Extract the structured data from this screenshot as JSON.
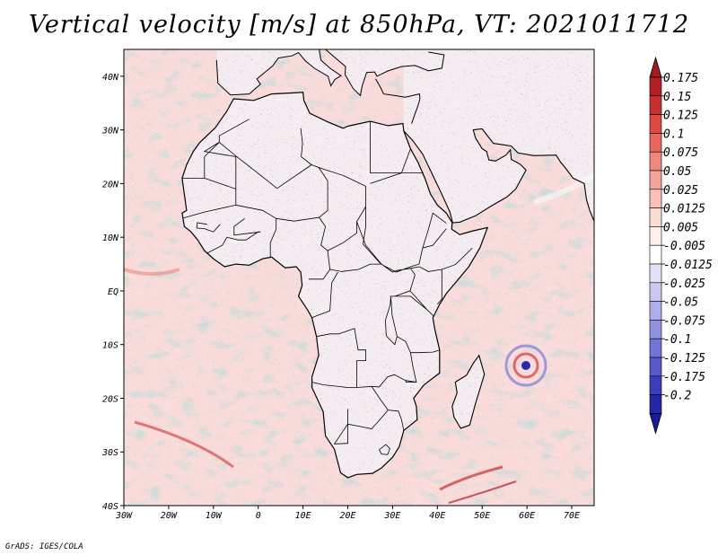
{
  "title": "Vertical velocity [m/s] at 850hPa, VT: 2021011712",
  "credit": "GrADS: IGES/COLA",
  "map": {
    "region": "Africa",
    "lon_range": [
      -30,
      75
    ],
    "lat_range": [
      -40,
      45
    ],
    "x_ticks": [
      {
        "lon": -30,
        "label": "30W"
      },
      {
        "lon": -20,
        "label": "20W"
      },
      {
        "lon": -10,
        "label": "10W"
      },
      {
        "lon": 0,
        "label": "0"
      },
      {
        "lon": 10,
        "label": "10E"
      },
      {
        "lon": 20,
        "label": "20E"
      },
      {
        "lon": 30,
        "label": "30E"
      },
      {
        "lon": 40,
        "label": "40E"
      },
      {
        "lon": 50,
        "label": "50E"
      },
      {
        "lon": 60,
        "label": "60E"
      },
      {
        "lon": 70,
        "label": "70E"
      }
    ],
    "y_ticks": [
      {
        "lat": 40,
        "label": "40N"
      },
      {
        "lat": 30,
        "label": "30N"
      },
      {
        "lat": 20,
        "label": "20N"
      },
      {
        "lat": 10,
        "label": "10N"
      },
      {
        "lat": 0,
        "label": "EQ"
      },
      {
        "lat": -10,
        "label": "10S"
      },
      {
        "lat": -20,
        "label": "20S"
      },
      {
        "lat": -30,
        "label": "30S"
      },
      {
        "lat": -40,
        "label": "40S"
      }
    ]
  },
  "colorbar": {
    "levels": [
      {
        "label": "0.175",
        "color": "#b02026"
      },
      {
        "label": "0.15",
        "color": "#c8302f"
      },
      {
        "label": "0.125",
        "color": "#dc4a45"
      },
      {
        "label": "0.1",
        "color": "#e8675f"
      },
      {
        "label": "0.075",
        "color": "#f0867d"
      },
      {
        "label": "0.05",
        "color": "#f5a49b"
      },
      {
        "label": "0.025",
        "color": "#f9c1ba"
      },
      {
        "label": "0.0125",
        "color": "#fcdcd7"
      },
      {
        "label": "0.005",
        "color": "#fff0ee"
      },
      {
        "label": "-0.005",
        "color": "#ffffff"
      },
      {
        "label": "-0.0125",
        "color": "#e2e2f8"
      },
      {
        "label": "-0.025",
        "color": "#c8c8f2"
      },
      {
        "label": "-0.05",
        "color": "#adadeb"
      },
      {
        "label": "-0.075",
        "color": "#9191e2"
      },
      {
        "label": "-0.1",
        "color": "#7474d8"
      },
      {
        "label": "-0.125",
        "color": "#5858cc"
      },
      {
        "label": "-0.175",
        "color": "#3c3cbc"
      },
      {
        "label": "-0.2",
        "color": "#2626a8"
      }
    ],
    "top_arrow_color": "#a01c24",
    "bottom_arrow_color": "#1a1a9a"
  }
}
